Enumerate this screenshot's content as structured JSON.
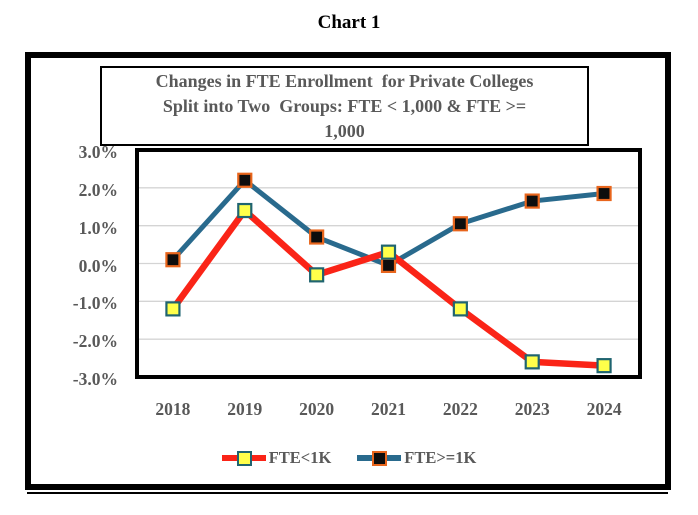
{
  "page": {
    "title": "Chart 1"
  },
  "chart_data": {
    "type": "line",
    "title": "Changes in FTE Enrollment  for Private Colleges Split into Two  Groups: FTE < 1,000 & FTE >= 1,000",
    "title_lines": [
      "Changes in FTE Enrollment  for Private Colleges",
      "Split into Two  Groups: FTE < 1,000 & FTE >=",
      "1,000"
    ],
    "categories": [
      "2018",
      "2019",
      "2020",
      "2021",
      "2022",
      "2023",
      "2024"
    ],
    "series": [
      {
        "name": "FTE>=1K",
        "values": [
          0.1,
          2.2,
          0.7,
          -0.05,
          1.05,
          1.65,
          1.85
        ],
        "line_color": "#296A8D",
        "line_width": 5,
        "marker_fill": "#0D0D0D",
        "marker_border": "#E8651C"
      },
      {
        "name": "FTE<1K",
        "values": [
          -1.2,
          1.4,
          -0.3,
          0.3,
          -1.2,
          -2.6,
          -2.7
        ],
        "line_color": "#FA2417",
        "line_width": 6.5,
        "marker_fill": "#FFFF4A",
        "marker_border": "#1F6470"
      }
    ],
    "legend_order": [
      "FTE<1K",
      "FTE>=1K"
    ],
    "ylim": [
      -3.0,
      3.0
    ],
    "ytick_step": 1.0,
    "ytick_labels": [
      "3.0%",
      "2.0%",
      "1.0%",
      "0.0%",
      "-1.0%",
      "-2.0%",
      "-3.0%"
    ],
    "xlabel": "",
    "ylabel": "",
    "grid": true,
    "legend_position": "bottom",
    "colors": {
      "axis_text": "#595959",
      "title_text": "#595959",
      "gridline": "#D4D4D4",
      "plot_border": "#000000",
      "frame_border": "#000000"
    }
  }
}
